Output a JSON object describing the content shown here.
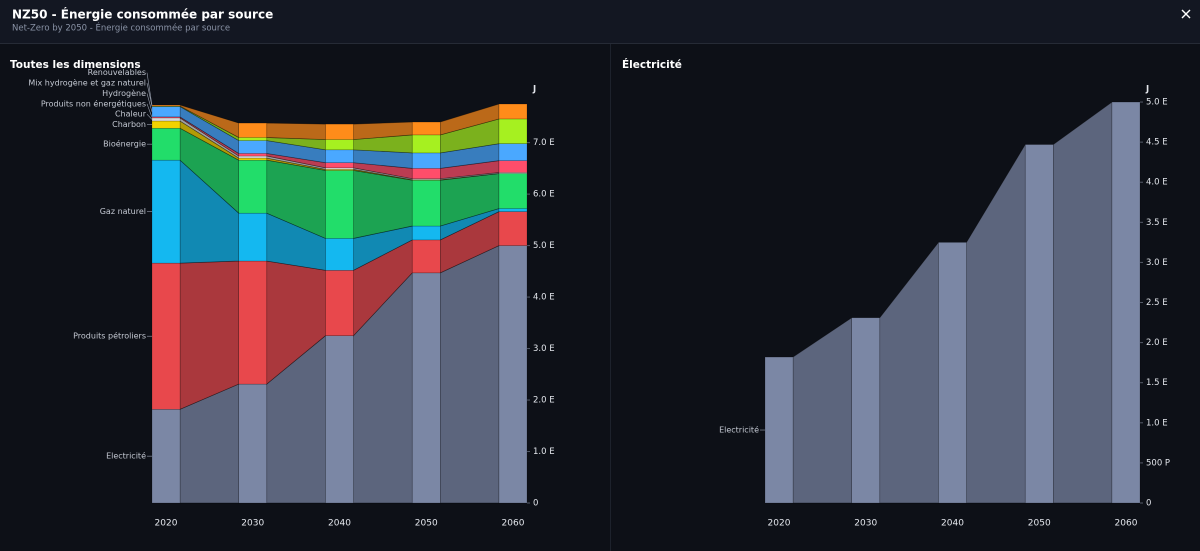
{
  "header": {
    "title": "NZ50 - Énergie consommée par source",
    "subtitle": "Net-Zero by 2050 - Énergie consommée par source"
  },
  "chart_data": [
    {
      "type": "area",
      "title": "Toutes les dimensions",
      "y_axis_label": "J",
      "categories": [
        "2020",
        "2030",
        "2040",
        "2050",
        "2060"
      ],
      "series": [
        {
          "name": "Electricité",
          "color": "#7b87a5",
          "values": [
            1.82,
            2.31,
            3.25,
            4.47,
            5.0
          ]
        },
        {
          "name": "Produits pétroliers",
          "color": "#e8484c",
          "values": [
            2.84,
            2.39,
            1.27,
            0.64,
            0.66
          ]
        },
        {
          "name": "Gaz naturel",
          "color": "#14b8f0",
          "values": [
            2.0,
            0.93,
            0.62,
            0.27,
            0.06
          ]
        },
        {
          "name": "Bioénergie",
          "color": "#22dd6a",
          "values": [
            0.62,
            1.03,
            1.32,
            0.89,
            0.68
          ]
        },
        {
          "name": "Charbon",
          "color": "#f2d200",
          "values": [
            0.14,
            0.04,
            0.02,
            0.01,
            0
          ]
        },
        {
          "name": "Chaleur",
          "color": "#d9d9d9",
          "values": [
            0.06,
            0.04,
            0.03,
            0.02,
            0.02
          ]
        },
        {
          "name": "Produits non énergétiques",
          "color": "#ff4d6a",
          "values": [
            0.02,
            0.05,
            0.1,
            0.2,
            0.23
          ]
        },
        {
          "name": "Hydrogène",
          "color": "#4aa8ff",
          "values": [
            0.2,
            0.25,
            0.25,
            0.3,
            0.33
          ]
        },
        {
          "name": "Mix hydrogène et gaz naturel",
          "color": "#a6f020",
          "values": [
            0.01,
            0.06,
            0.2,
            0.35,
            0.48
          ]
        },
        {
          "name": "Renouvelables",
          "color": "#ff8c1a",
          "values": [
            0.02,
            0.28,
            0.3,
            0.25,
            0.29
          ]
        }
      ],
      "ylim": [
        0,
        8.1
      ],
      "yticks": [
        0,
        {
          "value": 1,
          "label": "1.0 E"
        },
        {
          "value": 2,
          "label": "2.0 E"
        },
        {
          "value": 3,
          "label": "3.0 E"
        },
        {
          "value": 4,
          "label": "4.0 E"
        },
        {
          "value": 5,
          "label": "5.0 E"
        },
        {
          "value": 6,
          "label": "6.0 E"
        },
        {
          "value": 7,
          "label": "7.0 E"
        }
      ]
    },
    {
      "type": "area",
      "title": "Électricité",
      "y_axis_label": "J",
      "categories": [
        "2020",
        "2030",
        "2040",
        "2050",
        "2060"
      ],
      "series": [
        {
          "name": "Electricité",
          "color": "#7b87a5",
          "values": [
            1.82,
            2.31,
            3.25,
            4.47,
            5.0
          ]
        }
      ],
      "ylim": [
        0,
        5.2
      ],
      "yticks": [
        0,
        {
          "value": 0.5,
          "label": "500 P"
        },
        {
          "value": 1,
          "label": "1.0 E"
        },
        {
          "value": 1.5,
          "label": "1.5 E"
        },
        {
          "value": 2,
          "label": "2.0 E"
        },
        {
          "value": 2.5,
          "label": "2.5 E"
        },
        {
          "value": 3,
          "label": "3.0 E"
        },
        {
          "value": 3.5,
          "label": "3.5 E"
        },
        {
          "value": 4,
          "label": "4.0 E"
        },
        {
          "value": 4.5,
          "label": "4.5 E"
        },
        {
          "value": 5,
          "label": "5.0 E"
        }
      ]
    }
  ]
}
